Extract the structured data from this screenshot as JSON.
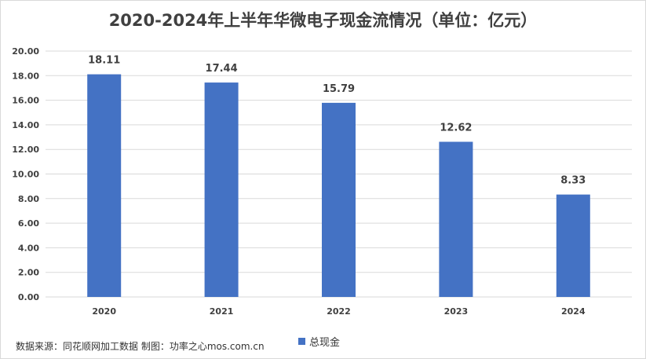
{
  "colors": {
    "bar": "#4472c4",
    "grid": "#d9d9d9",
    "axis_text": "#404040",
    "label_text": "#404040"
  },
  "source_note": "数据来源：同花顺网加工数据 制图：功率之心mos.com.cn",
  "chart_data": {
    "type": "bar",
    "title": "2020-2024年上半年华微电子现金流情况（单位：亿元）",
    "categories": [
      "2020",
      "2021",
      "2022",
      "2023",
      "2024"
    ],
    "series": [
      {
        "name": "总现金",
        "values": [
          18.11,
          17.44,
          15.79,
          12.62,
          8.33
        ]
      }
    ],
    "data_labels": [
      "18.11",
      "17.44",
      "15.79",
      "12.62",
      "8.33"
    ],
    "ylim": [
      0,
      20
    ],
    "y_ticks": [
      "0.00",
      "2.00",
      "4.00",
      "6.00",
      "8.00",
      "10.00",
      "12.00",
      "14.00",
      "16.00",
      "18.00",
      "20.00"
    ],
    "grid": true,
    "legend_position": "bottom"
  }
}
